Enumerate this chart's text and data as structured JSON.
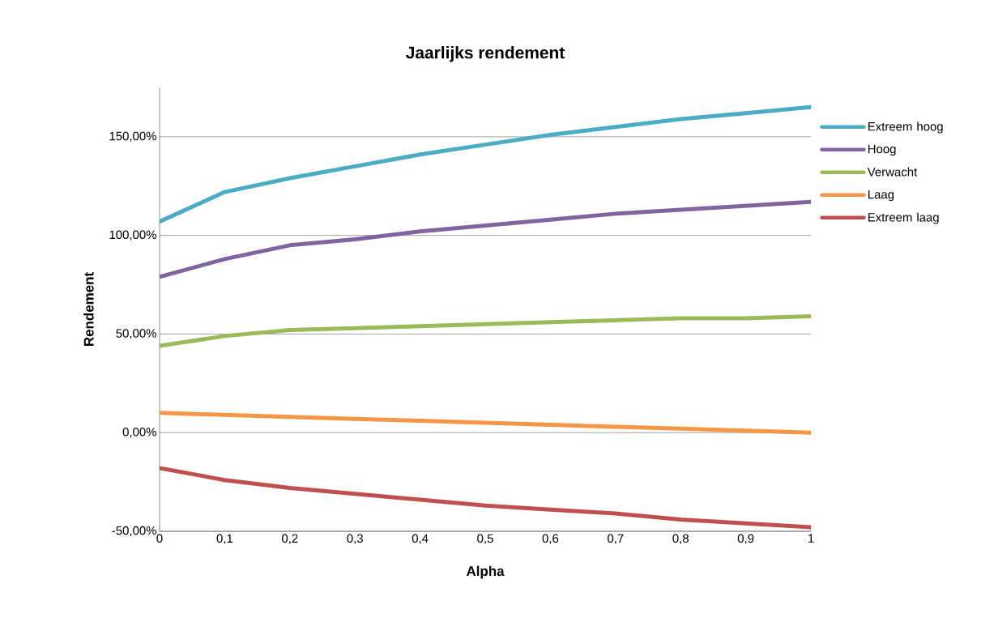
{
  "chart_data": {
    "type": "line",
    "title": "Jaarlijks rendement",
    "xlabel": "Alpha",
    "ylabel": "Rendement",
    "x": [
      0,
      0.1,
      0.2,
      0.3,
      0.4,
      0.5,
      0.6,
      0.7,
      0.8,
      0.9,
      1
    ],
    "series": [
      {
        "name": "Extreem hoog",
        "color": "#4bacc6",
        "values": [
          107,
          122,
          129,
          135,
          141,
          146,
          151,
          155,
          159,
          162,
          165
        ]
      },
      {
        "name": "Hoog",
        "color": "#8064a2",
        "values": [
          79,
          88,
          95,
          98,
          102,
          105,
          108,
          111,
          113,
          115,
          117
        ]
      },
      {
        "name": "Verwacht",
        "color": "#9bbb59",
        "values": [
          44,
          49,
          52,
          53,
          54,
          55,
          56,
          57,
          58,
          58,
          59
        ]
      },
      {
        "name": "Laag",
        "color": "#f79646",
        "values": [
          10,
          9,
          8,
          7,
          6,
          5,
          4,
          3,
          2,
          1,
          0
        ]
      },
      {
        "name": "Extreem laag",
        "color": "#c0504d",
        "values": [
          -18,
          -24,
          -28,
          -31,
          -34,
          -37,
          -39,
          -41,
          -44,
          -46,
          -48
        ]
      }
    ],
    "xlim": [
      0,
      1
    ],
    "xticks": [
      {
        "value": 0,
        "label": "0"
      },
      {
        "value": 0.1,
        "label": "0,1"
      },
      {
        "value": 0.2,
        "label": "0,2"
      },
      {
        "value": 0.3,
        "label": "0,3"
      },
      {
        "value": 0.4,
        "label": "0,4"
      },
      {
        "value": 0.5,
        "label": "0,5"
      },
      {
        "value": 0.6,
        "label": "0,6"
      },
      {
        "value": 0.7,
        "label": "0,7"
      },
      {
        "value": 0.8,
        "label": "0,8"
      },
      {
        "value": 0.9,
        "label": "0,9"
      },
      {
        "value": 1,
        "label": "1"
      }
    ],
    "ylim": [
      -50,
      175
    ],
    "yticks": [
      {
        "value": -50,
        "label": "-50,00%"
      },
      {
        "value": 0,
        "label": "0,00%"
      },
      {
        "value": 50,
        "label": "50,00%"
      },
      {
        "value": 100,
        "label": "100,00%"
      },
      {
        "value": 150,
        "label": "150,00%"
      }
    ],
    "grid": "y",
    "legend": "right",
    "marker": "none",
    "line_style": "solid"
  }
}
